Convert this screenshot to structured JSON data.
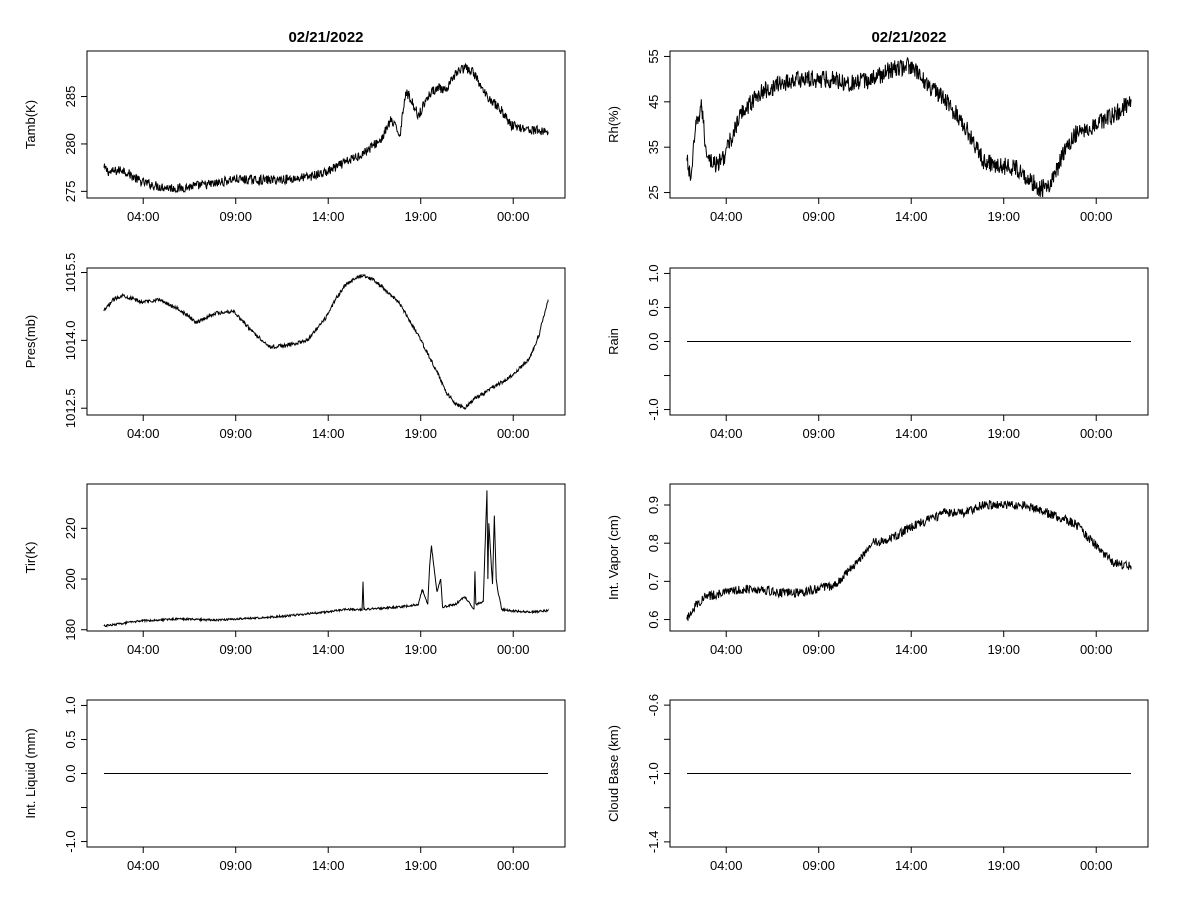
{
  "figure": {
    "background": "#ffffff",
    "line_color": "#000000"
  },
  "x_tick_labels": [
    "04:00",
    "09:00",
    "14:00",
    "19:00",
    "00:00"
  ],
  "chart_data": [
    {
      "id": "tamb",
      "type": "line",
      "title": "02/21/2022",
      "xlabel": "",
      "ylabel": "Tamb(K)",
      "ylim": [
        274.3,
        289.8
      ],
      "yticks": [
        275,
        280,
        285
      ],
      "ytick_labels": [
        "275",
        "280",
        "285"
      ],
      "noise": 0.5,
      "series": [
        {
          "x": [
            0.0,
            0.3,
            1.0,
            2.0,
            3.0,
            4.0,
            5.0,
            6.0,
            7.0,
            8.0,
            9.0,
            10.0,
            11.0,
            12.0,
            13.0,
            14.0,
            15.0,
            15.5,
            16.0,
            16.3,
            16.5,
            17.0,
            17.5,
            18.0,
            18.5,
            19.0,
            19.5,
            20.0,
            20.5,
            21.0,
            21.5,
            22.0,
            23.0,
            24.0
          ],
          "y": [
            277.5,
            277.0,
            277.3,
            276.0,
            275.5,
            275.3,
            275.6,
            275.8,
            276.3,
            276.2,
            276.2,
            276.3,
            276.5,
            277.0,
            278.0,
            279.0,
            280.5,
            282.5,
            281.0,
            285.5,
            285.0,
            283.0,
            285.0,
            286.0,
            285.5,
            287.5,
            288.0,
            287.5,
            285.5,
            284.5,
            283.5,
            282.0,
            281.5,
            281.3
          ]
        }
      ]
    },
    {
      "id": "rh",
      "type": "line",
      "title": "02/21/2022",
      "xlabel": "",
      "ylabel": "Rh(%)",
      "ylim": [
        23.8,
        56.2
      ],
      "yticks": [
        25,
        35,
        45,
        55
      ],
      "ytick_labels": [
        "25",
        "35",
        "45",
        "55"
      ],
      "noise": 2.0,
      "series": [
        {
          "x": [
            0.0,
            0.2,
            0.5,
            0.8,
            1.0,
            1.3,
            1.6,
            2.0,
            2.5,
            3.0,
            3.5,
            4.0,
            5.0,
            6.0,
            7.0,
            8.0,
            9.0,
            10.0,
            11.0,
            12.0,
            13.0,
            14.0,
            15.0,
            16.0,
            17.0,
            18.0,
            19.0,
            19.5,
            20.0,
            20.5,
            21.0,
            22.0,
            23.0,
            24.0
          ],
          "y": [
            32,
            28,
            40,
            44,
            35,
            32,
            31,
            33,
            38,
            43,
            45,
            47,
            49,
            50,
            50,
            50,
            49,
            50,
            52,
            53,
            49,
            45,
            40,
            32,
            31,
            30,
            26,
            26,
            30,
            35,
            38,
            40,
            42,
            45
          ]
        }
      ]
    },
    {
      "id": "pres",
      "type": "line",
      "title": "",
      "xlabel": "",
      "ylabel": "Pres(mb)",
      "ylim": [
        1012.35,
        1015.6
      ],
      "yticks": [
        1012.5,
        1014.0,
        1015.5
      ],
      "ytick_labels": [
        "1012.5",
        "1014.0",
        "1015.5"
      ],
      "noise": 0.04,
      "series": [
        {
          "x": [
            0.0,
            0.5,
            1.0,
            2.0,
            3.0,
            4.0,
            5.0,
            6.0,
            7.0,
            8.0,
            9.0,
            10.0,
            11.0,
            12.0,
            12.5,
            13.0,
            13.5,
            14.0,
            14.5,
            15.0,
            16.0,
            17.0,
            18.0,
            18.5,
            19.0,
            19.5,
            20.0,
            21.0,
            22.0,
            23.0,
            23.5,
            24.0
          ],
          "y": [
            1014.65,
            1014.9,
            1015.0,
            1014.85,
            1014.9,
            1014.7,
            1014.4,
            1014.6,
            1014.65,
            1014.2,
            1013.85,
            1013.9,
            1014.0,
            1014.5,
            1014.9,
            1015.2,
            1015.35,
            1015.45,
            1015.35,
            1015.2,
            1014.8,
            1014.1,
            1013.3,
            1012.85,
            1012.6,
            1012.5,
            1012.7,
            1012.95,
            1013.2,
            1013.6,
            1014.1,
            1014.9
          ]
        }
      ]
    },
    {
      "id": "rain",
      "type": "line",
      "title": "",
      "xlabel": "",
      "ylabel": "Rain",
      "ylim": [
        -1.08,
        1.08
      ],
      "yticks": [
        -1.0,
        -0.5,
        0.0,
        0.5,
        1.0
      ],
      "ytick_labels": [
        "-1.0",
        "",
        "0.0",
        "0.5",
        "1.0"
      ],
      "noise": 0,
      "series": [
        {
          "x": [
            0.0,
            24.0
          ],
          "y": [
            0.0,
            0.0
          ]
        }
      ]
    },
    {
      "id": "tir",
      "type": "line",
      "title": "",
      "xlabel": "",
      "ylabel": "Tir(K)",
      "ylim": [
        179.5,
        237.5
      ],
      "yticks": [
        180,
        200,
        220
      ],
      "ytick_labels": [
        "180",
        "200",
        "220"
      ],
      "noise": 0.4,
      "series": [
        {
          "x": [
            0.0,
            2.0,
            4.0,
            6.0,
            8.0,
            10.0,
            12.0,
            13.0,
            13.95,
            14.0,
            14.05,
            16.0,
            17.0,
            17.2,
            17.5,
            17.6,
            17.7,
            18.0,
            18.2,
            18.3,
            19.0,
            19.5,
            20.0,
            20.05,
            20.1,
            20.5,
            20.7,
            20.75,
            20.8,
            21.0,
            21.1,
            21.2,
            21.3,
            21.5,
            22.0,
            23.0,
            24.0
          ],
          "y": [
            181.5,
            183.5,
            184.3,
            183.8,
            184.5,
            185.5,
            187.0,
            188.0,
            188.0,
            199.0,
            188.0,
            189.0,
            190.0,
            196.0,
            190.0,
            205.0,
            213.0,
            195.0,
            200.0,
            189.0,
            190.0,
            193.0,
            188.0,
            203.0,
            190.0,
            191.0,
            235.0,
            200.0,
            222.0,
            198.0,
            225.0,
            200.0,
            195.0,
            188.0,
            187.5,
            187.0,
            187.5
          ]
        }
      ]
    },
    {
      "id": "vapor",
      "type": "line",
      "title": "",
      "xlabel": "",
      "ylabel": "Int. Vapor (cm)",
      "ylim": [
        0.57,
        0.955
      ],
      "yticks": [
        0.6,
        0.7,
        0.8,
        0.9
      ],
      "ytick_labels": [
        "0.6",
        "0.7",
        "0.8",
        "0.9"
      ],
      "noise": 0.012,
      "series": [
        {
          "x": [
            0.0,
            0.2,
            0.5,
            1.0,
            2.0,
            3.0,
            4.0,
            5.0,
            6.0,
            7.0,
            8.0,
            9.0,
            10.0,
            11.0,
            12.0,
            13.0,
            14.0,
            15.0,
            16.0,
            17.0,
            18.0,
            19.0,
            20.0,
            21.0,
            22.0,
            23.0,
            24.0
          ],
          "y": [
            0.6,
            0.62,
            0.64,
            0.66,
            0.67,
            0.68,
            0.68,
            0.67,
            0.67,
            0.68,
            0.69,
            0.74,
            0.8,
            0.81,
            0.84,
            0.86,
            0.88,
            0.88,
            0.9,
            0.9,
            0.9,
            0.89,
            0.87,
            0.85,
            0.8,
            0.75,
            0.74
          ]
        }
      ]
    },
    {
      "id": "liquid",
      "type": "line",
      "title": "",
      "xlabel": "",
      "ylabel": "Int. Liquid (mm)",
      "ylim": [
        -1.08,
        1.08
      ],
      "yticks": [
        -1.0,
        -0.5,
        0.0,
        0.5,
        1.0
      ],
      "ytick_labels": [
        "-1.0",
        "",
        "0.0",
        "0.5",
        "1.0"
      ],
      "noise": 0,
      "series": [
        {
          "x": [
            0.0,
            24.0
          ],
          "y": [
            0.0,
            0.0
          ]
        }
      ]
    },
    {
      "id": "cloud",
      "type": "line",
      "title": "",
      "xlabel": "",
      "ylabel": "Cloud Base (km)",
      "ylim": [
        -1.43,
        -0.57
      ],
      "yticks": [
        -1.4,
        -1.2,
        -1.0,
        -0.8,
        -0.6
      ],
      "ytick_labels": [
        "-1.4",
        "",
        "-1.0",
        "",
        "-0.6"
      ],
      "noise": 0,
      "series": [
        {
          "x": [
            0.0,
            24.0
          ],
          "y": [
            -1.0,
            -1.0
          ]
        }
      ]
    }
  ]
}
